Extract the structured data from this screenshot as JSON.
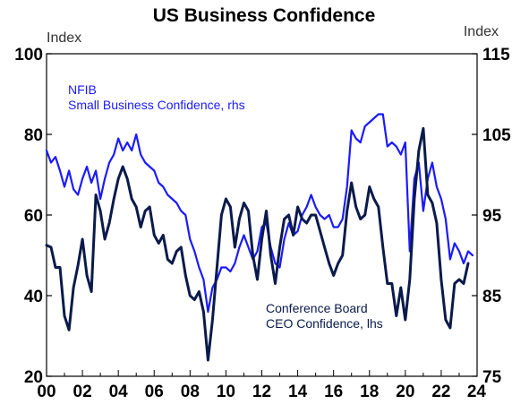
{
  "chart_data": {
    "type": "line",
    "title": "US Business Confidence",
    "left_axis": {
      "unit_label": "Index",
      "range": [
        20,
        100
      ],
      "ticks": [
        20,
        40,
        60,
        80,
        100
      ],
      "tick_labels": [
        "20",
        "40",
        "60",
        "80",
        "100"
      ]
    },
    "right_axis": {
      "unit_label": "Index",
      "range": [
        75,
        115
      ],
      "ticks": [
        75,
        85,
        95,
        105,
        115
      ],
      "tick_labels": [
        "75",
        "85",
        "95",
        "105",
        "115"
      ]
    },
    "x_axis": {
      "range": [
        2000,
        2024
      ],
      "ticks": [
        2000,
        2002,
        2004,
        2006,
        2008,
        2010,
        2012,
        2014,
        2016,
        2018,
        2020,
        2022,
        2024
      ],
      "tick_labels": [
        "00",
        "02",
        "04",
        "06",
        "08",
        "10",
        "12",
        "14",
        "16",
        "18",
        "20",
        "22",
        "24"
      ]
    },
    "grid": false,
    "series": [
      {
        "name_line1": "NFIB",
        "name_line2": "Small Business Confidence, rhs",
        "axis": "right",
        "color": "#1a1aff",
        "points": [
          [
            2000.0,
            103.0
          ],
          [
            2000.25,
            101.5
          ],
          [
            2000.5,
            102.2
          ],
          [
            2000.75,
            100.5
          ],
          [
            2001.0,
            98.5
          ],
          [
            2001.25,
            100.5
          ],
          [
            2001.5,
            98.2
          ],
          [
            2001.75,
            97.5
          ],
          [
            2002.0,
            99.5
          ],
          [
            2002.25,
            101.0
          ],
          [
            2002.5,
            99.0
          ],
          [
            2002.75,
            100.5
          ],
          [
            2003.0,
            97.0
          ],
          [
            2003.25,
            99.5
          ],
          [
            2003.5,
            101.5
          ],
          [
            2003.75,
            102.5
          ],
          [
            2004.0,
            104.5
          ],
          [
            2004.25,
            103.0
          ],
          [
            2004.5,
            104.0
          ],
          [
            2004.75,
            103.0
          ],
          [
            2005.0,
            105.0
          ],
          [
            2005.25,
            102.5
          ],
          [
            2005.5,
            101.5
          ],
          [
            2005.75,
            101.0
          ],
          [
            2006.0,
            100.5
          ],
          [
            2006.25,
            99.0
          ],
          [
            2006.5,
            98.5
          ],
          [
            2006.75,
            97.5
          ],
          [
            2007.0,
            97.0
          ],
          [
            2007.25,
            96.5
          ],
          [
            2007.5,
            95.5
          ],
          [
            2007.75,
            95.0
          ],
          [
            2008.0,
            92.0
          ],
          [
            2008.25,
            90.5
          ],
          [
            2008.5,
            88.5
          ],
          [
            2008.75,
            87.0
          ],
          [
            2009.0,
            83.0
          ],
          [
            2009.25,
            86.0
          ],
          [
            2009.5,
            87.0
          ],
          [
            2009.75,
            88.5
          ],
          [
            2010.0,
            88.5
          ],
          [
            2010.25,
            88.0
          ],
          [
            2010.5,
            89.0
          ],
          [
            2010.75,
            91.0
          ],
          [
            2011.0,
            92.5
          ],
          [
            2011.25,
            91.0
          ],
          [
            2011.5,
            89.5
          ],
          [
            2011.75,
            90.5
          ],
          [
            2012.0,
            93.5
          ],
          [
            2012.25,
            94.0
          ],
          [
            2012.5,
            91.0
          ],
          [
            2012.75,
            89.0
          ],
          [
            2013.0,
            88.5
          ],
          [
            2013.25,
            92.0
          ],
          [
            2013.5,
            94.0
          ],
          [
            2013.75,
            92.5
          ],
          [
            2014.0,
            93.0
          ],
          [
            2014.25,
            95.0
          ],
          [
            2014.5,
            96.0
          ],
          [
            2014.75,
            97.5
          ],
          [
            2015.0,
            96.0
          ],
          [
            2015.25,
            95.0
          ],
          [
            2015.5,
            94.5
          ],
          [
            2015.75,
            95.0
          ],
          [
            2016.0,
            93.5
          ],
          [
            2016.25,
            93.5
          ],
          [
            2016.5,
            94.5
          ],
          [
            2016.75,
            98.5
          ],
          [
            2017.0,
            105.5
          ],
          [
            2017.25,
            104.5
          ],
          [
            2017.5,
            104.0
          ],
          [
            2017.75,
            106.0
          ],
          [
            2018.0,
            106.5
          ],
          [
            2018.25,
            107.0
          ],
          [
            2018.5,
            107.5
          ],
          [
            2018.75,
            107.5
          ],
          [
            2019.0,
            103.5
          ],
          [
            2019.25,
            104.0
          ],
          [
            2019.5,
            103.5
          ],
          [
            2019.75,
            102.5
          ],
          [
            2020.0,
            104.0
          ],
          [
            2020.25,
            90.5
          ],
          [
            2020.5,
            99.5
          ],
          [
            2020.75,
            101.5
          ],
          [
            2021.0,
            95.5
          ],
          [
            2021.25,
            99.5
          ],
          [
            2021.5,
            101.5
          ],
          [
            2021.75,
            98.5
          ],
          [
            2022.0,
            97.0
          ],
          [
            2022.25,
            94.5
          ],
          [
            2022.5,
            89.5
          ],
          [
            2022.75,
            91.5
          ],
          [
            2023.0,
            90.5
          ],
          [
            2023.25,
            89.0
          ],
          [
            2023.5,
            90.5
          ],
          [
            2023.75,
            90.0
          ]
        ]
      },
      {
        "name_line1": "Conference Board",
        "name_line2": "CEO Confidence, lhs",
        "axis": "left",
        "color": "#0a1a4a",
        "points": [
          [
            2000.0,
            52.5
          ],
          [
            2000.25,
            52.0
          ],
          [
            2000.5,
            47.0
          ],
          [
            2000.75,
            47.0
          ],
          [
            2001.0,
            35.0
          ],
          [
            2001.25,
            31.5
          ],
          [
            2001.5,
            42.0
          ],
          [
            2001.75,
            47.5
          ],
          [
            2002.0,
            54.0
          ],
          [
            2002.25,
            45.0
          ],
          [
            2002.5,
            41.0
          ],
          [
            2002.75,
            65.0
          ],
          [
            2003.0,
            61.0
          ],
          [
            2003.25,
            54.0
          ],
          [
            2003.5,
            58.0
          ],
          [
            2003.75,
            64.0
          ],
          [
            2004.0,
            69.0
          ],
          [
            2004.25,
            72.0
          ],
          [
            2004.5,
            69.0
          ],
          [
            2004.75,
            64.0
          ],
          [
            2005.0,
            62.0
          ],
          [
            2005.25,
            57.0
          ],
          [
            2005.5,
            61.0
          ],
          [
            2005.75,
            62.0
          ],
          [
            2006.0,
            55.0
          ],
          [
            2006.25,
            53.0
          ],
          [
            2006.5,
            55.0
          ],
          [
            2006.75,
            49.0
          ],
          [
            2007.0,
            48.0
          ],
          [
            2007.25,
            51.0
          ],
          [
            2007.5,
            52.0
          ],
          [
            2007.75,
            45.0
          ],
          [
            2008.0,
            40.0
          ],
          [
            2008.25,
            39.0
          ],
          [
            2008.5,
            41.0
          ],
          [
            2008.75,
            36.0
          ],
          [
            2009.0,
            24.0
          ],
          [
            2009.25,
            34.0
          ],
          [
            2009.5,
            47.0
          ],
          [
            2009.75,
            60.0
          ],
          [
            2010.0,
            64.0
          ],
          [
            2010.25,
            62.0
          ],
          [
            2010.5,
            52.0
          ],
          [
            2010.75,
            59.0
          ],
          [
            2011.0,
            63.0
          ],
          [
            2011.25,
            61.0
          ],
          [
            2011.5,
            50.0
          ],
          [
            2011.75,
            44.0
          ],
          [
            2012.0,
            54.0
          ],
          [
            2012.25,
            61.0
          ],
          [
            2012.5,
            50.0
          ],
          [
            2012.75,
            43.0
          ],
          [
            2013.0,
            52.0
          ],
          [
            2013.25,
            59.0
          ],
          [
            2013.5,
            60.0
          ],
          [
            2013.75,
            55.0
          ],
          [
            2014.0,
            62.0
          ],
          [
            2014.25,
            59.0
          ],
          [
            2014.5,
            58.0
          ],
          [
            2014.75,
            60.0
          ],
          [
            2015.0,
            60.0
          ],
          [
            2015.25,
            56.0
          ],
          [
            2015.5,
            52.0
          ],
          [
            2015.75,
            48.0
          ],
          [
            2016.0,
            45.0
          ],
          [
            2016.25,
            48.0
          ],
          [
            2016.5,
            50.0
          ],
          [
            2016.75,
            61.0
          ],
          [
            2017.0,
            68.0
          ],
          [
            2017.25,
            62.0
          ],
          [
            2017.5,
            59.0
          ],
          [
            2017.75,
            60.0
          ],
          [
            2018.0,
            67.0
          ],
          [
            2018.25,
            64.0
          ],
          [
            2018.5,
            62.0
          ],
          [
            2018.75,
            52.0
          ],
          [
            2019.0,
            43.0
          ],
          [
            2019.25,
            43.0
          ],
          [
            2019.5,
            35.0
          ],
          [
            2019.75,
            42.0
          ],
          [
            2020.0,
            34.0
          ],
          [
            2020.25,
            44.0
          ],
          [
            2020.5,
            64.0
          ],
          [
            2020.75,
            76.0
          ],
          [
            2021.0,
            81.5
          ],
          [
            2021.25,
            65.0
          ],
          [
            2021.5,
            63.0
          ],
          [
            2021.75,
            58.0
          ],
          [
            2022.0,
            44.0
          ],
          [
            2022.25,
            34.0
          ],
          [
            2022.5,
            32.0
          ],
          [
            2022.75,
            43.0
          ],
          [
            2023.0,
            44.0
          ],
          [
            2023.25,
            43.0
          ],
          [
            2023.5,
            48.0
          ]
        ]
      }
    ]
  }
}
